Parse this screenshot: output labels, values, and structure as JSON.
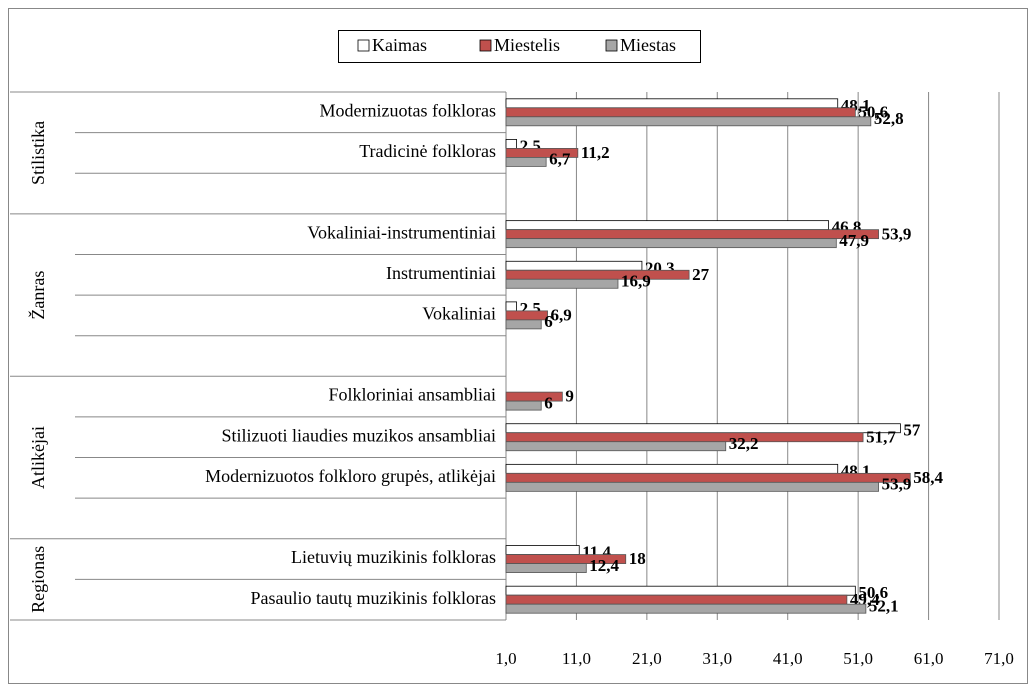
{
  "chart_data": {
    "type": "bar",
    "orientation": "horizontal",
    "categories": [
      "Modernizuotas folkloras",
      "Tradicinė folkloras",
      null,
      "Vokaliniai-instrumentiniai",
      "Instrumentiniai",
      "Vokaliniai",
      null,
      "Folkloriniai ansambliai",
      "Stilizuoti liaudies muzikos ansambliai",
      "Modernizuotos folkloro grupės, atlikėjai",
      null,
      "Lietuvių muzikinis folkloras",
      "Pasaulio tautų muzikinis folkloras"
    ],
    "groups": [
      {
        "label": "Stilistika",
        "size": 3
      },
      {
        "label": "Žanras",
        "size": 4
      },
      {
        "label": "Atlikėjai",
        "size": 4
      },
      {
        "label": "Regionas",
        "size": 2
      }
    ],
    "series": [
      {
        "name": "Kaimas",
        "color": "#ffffff",
        "values": [
          48.1,
          2.5,
          null,
          46.8,
          20.3,
          2.5,
          null,
          null,
          57,
          48.1,
          null,
          11.4,
          50.6
        ],
        "value_labels": [
          "48,1",
          "2,5",
          null,
          "46,8",
          "20,3",
          "2,5",
          null,
          null,
          "57",
          "48,1",
          null,
          "11,4",
          "50,6"
        ]
      },
      {
        "name": "Miestelis",
        "color": "#c0504d",
        "values": [
          50.6,
          11.2,
          null,
          53.9,
          27,
          6.9,
          null,
          9,
          51.7,
          58.4,
          null,
          18,
          49.4
        ],
        "value_labels": [
          "50,6",
          "11,2",
          null,
          "53,9",
          "27",
          "6,9",
          null,
          "9",
          "51,7",
          "58,4",
          null,
          "18",
          "49,4"
        ]
      },
      {
        "name": "Miestas",
        "color": "#a6a6a6",
        "values": [
          52.8,
          6.7,
          null,
          47.9,
          16.9,
          6,
          null,
          6,
          32.2,
          53.9,
          null,
          12.4,
          52.1
        ],
        "value_labels": [
          "52,8",
          "6,7",
          null,
          "47,9",
          "16,9",
          "6",
          null,
          "6",
          "32,2",
          "53,9",
          null,
          "12,4",
          "52,1"
        ]
      }
    ],
    "xlim": [
      1,
      71
    ],
    "xticks": [
      {
        "value": 1,
        "label": "1,0"
      },
      {
        "value": 11,
        "label": "11,0"
      },
      {
        "value": 21,
        "label": "21,0"
      },
      {
        "value": 31,
        "label": "31,0"
      },
      {
        "value": 41,
        "label": "41,0"
      },
      {
        "value": 51,
        "label": "51,0"
      },
      {
        "value": 61,
        "label": "61,0"
      },
      {
        "value": 71,
        "label": "71,0"
      }
    ],
    "grid": true,
    "legend": "top"
  }
}
